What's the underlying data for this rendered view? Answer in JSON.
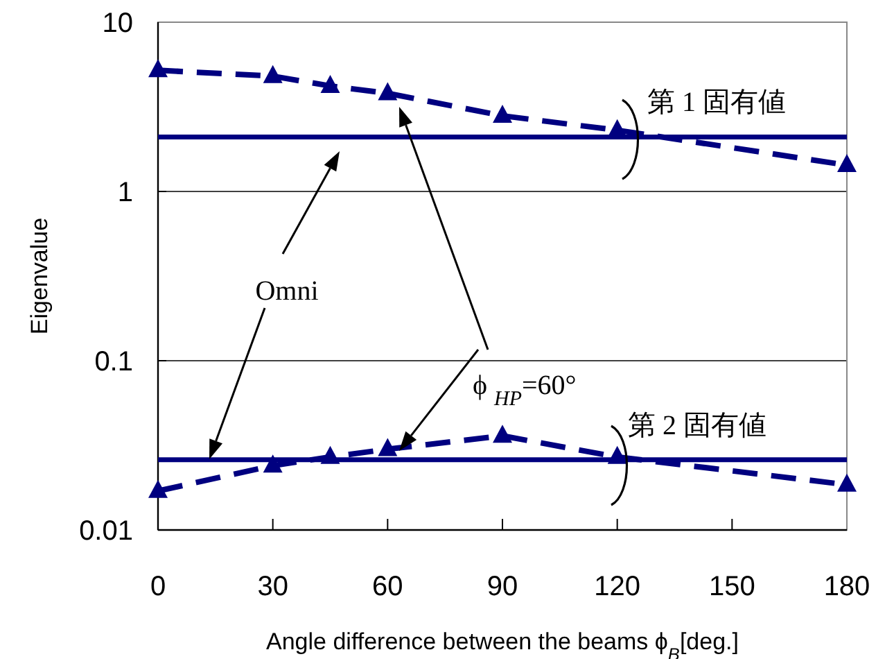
{
  "chart_data": {
    "type": "line",
    "xlabel": "Angle difference between the beams ϕ$_{B}$[deg.]",
    "ylabel": "Eigenvalue",
    "x": [
      0,
      30,
      45,
      60,
      90,
      120,
      180
    ],
    "series": [
      {
        "color": "#000080",
        "values": [
          5.2,
          4.8,
          4.2,
          3.8,
          2.8,
          2.3,
          1.43
        ]
      },
      {
        "color": "#000080",
        "values": [
          0.017,
          0.024,
          0.027,
          0.03,
          0.036,
          0.027,
          0.0185
        ]
      },
      {
        "color": "#000080",
        "values": [
          2.1,
          2.1,
          2.1,
          2.1,
          2.1,
          2.1,
          2.1
        ],
        "marker": "none",
        "line_style": "solid"
      },
      {
        "color": "#000080",
        "values": [
          0.026,
          0.026,
          0.026,
          0.026,
          0.026,
          0.026,
          0.026
        ],
        "marker": "none",
        "line_style": "solid"
      }
    ],
    "annotations": [
      "第 1 固有値",
      "第 2 固有値",
      "Omni",
      "ϕ $_{HP}$=60°"
    ],
    "xlim": [
      0,
      180
    ],
    "xticks": [
      0,
      30,
      60,
      90,
      120,
      150,
      180
    ],
    "ylim": [
      0.01,
      10
    ],
    "yticks": [
      0.01,
      0.1,
      1,
      10
    ],
    "log": "y",
    "grid": "y",
    "marker": "triangle",
    "line_style": "dashed"
  }
}
